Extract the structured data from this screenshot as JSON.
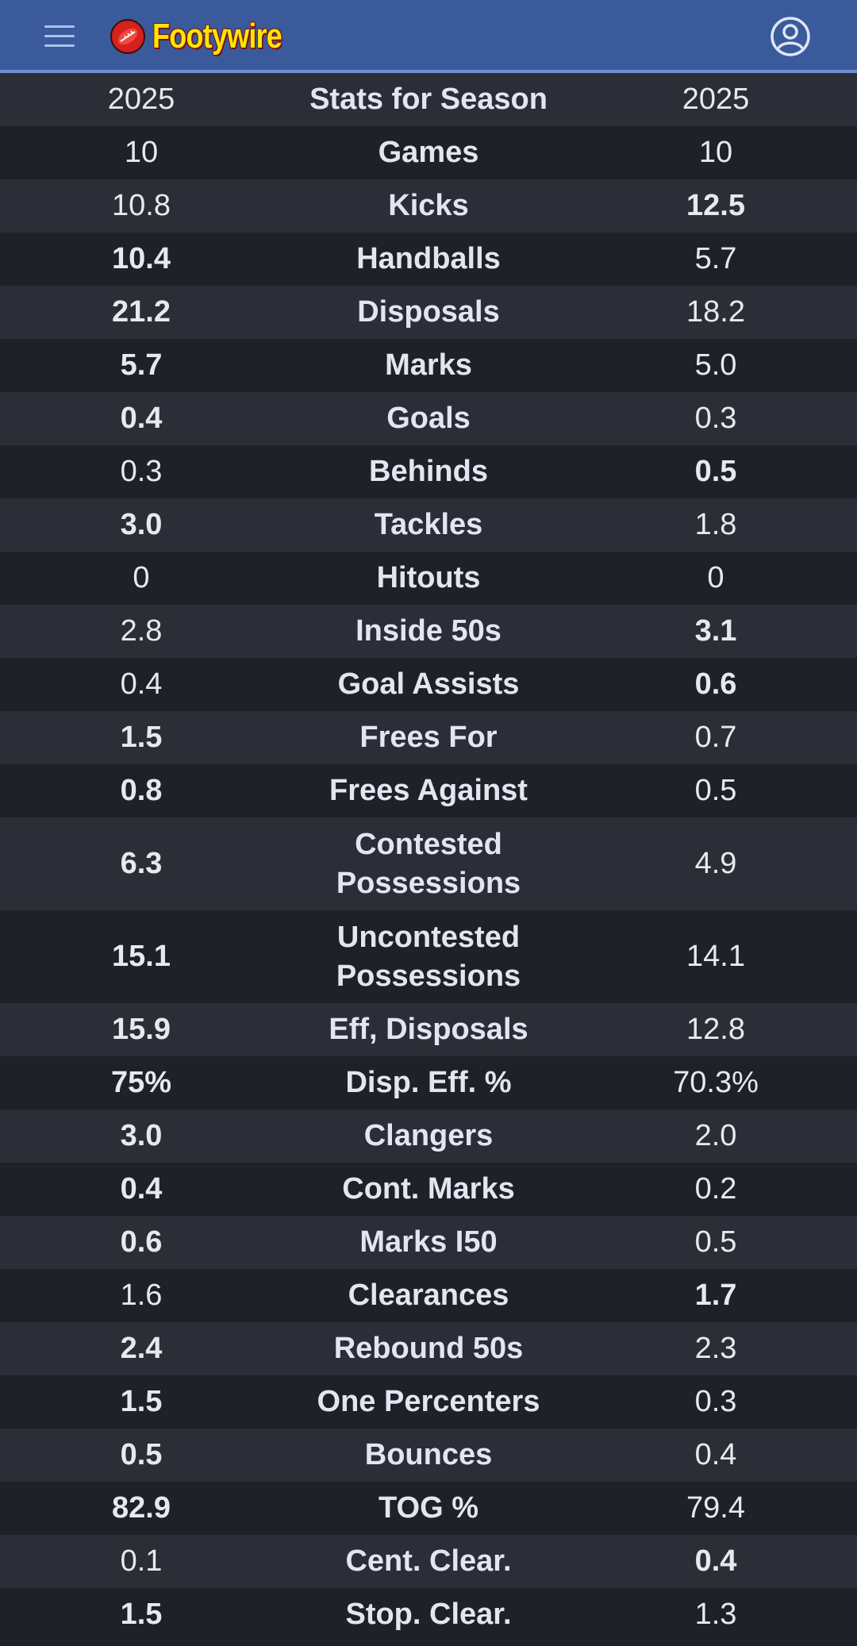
{
  "header": {
    "logo_text": "Footywire",
    "menu_icon": "hamburger-menu-icon",
    "account_icon": "user-account-icon",
    "colors": {
      "bar": "#3a5a9c",
      "logo_text": "#ffe600",
      "ball": "#d4211d"
    }
  },
  "table": {
    "header": {
      "left": "2025",
      "label": "Stats for Season",
      "right": "2025"
    },
    "rows": [
      {
        "left": "10",
        "label": "Games",
        "right": "10",
        "bold": "none"
      },
      {
        "left": "10.8",
        "label": "Kicks",
        "right": "12.5",
        "bold": "right"
      },
      {
        "left": "10.4",
        "label": "Handballs",
        "right": "5.7",
        "bold": "left"
      },
      {
        "left": "21.2",
        "label": "Disposals",
        "right": "18.2",
        "bold": "left"
      },
      {
        "left": "5.7",
        "label": "Marks",
        "right": "5.0",
        "bold": "left"
      },
      {
        "left": "0.4",
        "label": "Goals",
        "right": "0.3",
        "bold": "left"
      },
      {
        "left": "0.3",
        "label": "Behinds",
        "right": "0.5",
        "bold": "right"
      },
      {
        "left": "3.0",
        "label": "Tackles",
        "right": "1.8",
        "bold": "left"
      },
      {
        "left": "0",
        "label": "Hitouts",
        "right": "0",
        "bold": "none"
      },
      {
        "left": "2.8",
        "label": "Inside 50s",
        "right": "3.1",
        "bold": "right"
      },
      {
        "left": "0.4",
        "label": "Goal Assists",
        "right": "0.6",
        "bold": "right"
      },
      {
        "left": "1.5",
        "label": "Frees For",
        "right": "0.7",
        "bold": "left"
      },
      {
        "left": "0.8",
        "label": "Frees Against",
        "right": "0.5",
        "bold": "left"
      },
      {
        "left": "6.3",
        "label": "Contested Possessions",
        "right": "4.9",
        "bold": "left",
        "tall": true
      },
      {
        "left": "15.1",
        "label": "Uncontested Possessions",
        "right": "14.1",
        "bold": "left",
        "tall": true
      },
      {
        "left": "15.9",
        "label": "Eff, Disposals",
        "right": "12.8",
        "bold": "left"
      },
      {
        "left": "75%",
        "label": "Disp. Eff. %",
        "right": "70.3%",
        "bold": "left"
      },
      {
        "left": "3.0",
        "label": "Clangers",
        "right": "2.0",
        "bold": "left"
      },
      {
        "left": "0.4",
        "label": "Cont. Marks",
        "right": "0.2",
        "bold": "left"
      },
      {
        "left": "0.6",
        "label": "Marks I50",
        "right": "0.5",
        "bold": "left"
      },
      {
        "left": "1.6",
        "label": "Clearances",
        "right": "1.7",
        "bold": "right"
      },
      {
        "left": "2.4",
        "label": "Rebound 50s",
        "right": "2.3",
        "bold": "left"
      },
      {
        "left": "1.5",
        "label": "One Percenters",
        "right": "0.3",
        "bold": "left"
      },
      {
        "left": "0.5",
        "label": "Bounces",
        "right": "0.4",
        "bold": "left"
      },
      {
        "left": "82.9",
        "label": "TOG %",
        "right": "79.4",
        "bold": "left"
      },
      {
        "left": "0.1",
        "label": "Cent. Clear.",
        "right": "0.4",
        "bold": "right"
      },
      {
        "left": "1.5",
        "label": "Stop. Clear.",
        "right": "1.3",
        "bold": "left"
      }
    ]
  }
}
